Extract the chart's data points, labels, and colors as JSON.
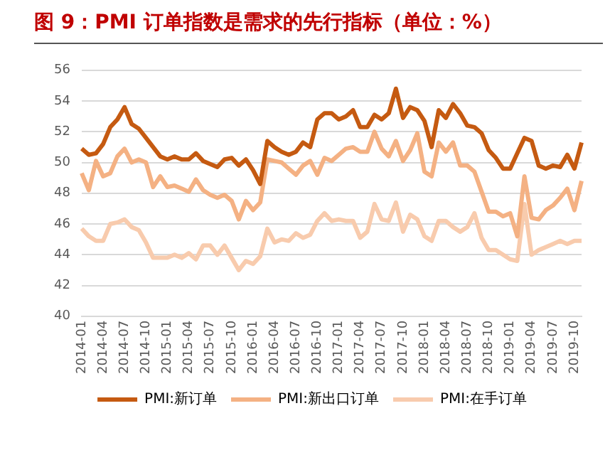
{
  "chart_data": {
    "type": "line",
    "title": "图 9：PMI 订单指数是需求的先行指标（单位：%）",
    "categories": [
      "2014-01",
      null,
      null,
      "2014-04",
      null,
      null,
      "2014-07",
      null,
      null,
      "2014-10",
      null,
      null,
      "2015-01",
      null,
      null,
      "2015-04",
      null,
      null,
      "2015-07",
      null,
      null,
      "2015-10",
      null,
      null,
      "2016-01",
      null,
      null,
      "2016-04",
      null,
      null,
      "2016-07",
      null,
      null,
      "2016-10",
      null,
      null,
      "2017-01",
      null,
      null,
      "2017-04",
      null,
      null,
      "2017-07",
      null,
      null,
      "2017-10",
      null,
      null,
      "2018-01",
      null,
      null,
      "2018-04",
      null,
      null,
      "2018-07",
      null,
      null,
      "2018-10",
      null,
      null,
      "2019-01",
      null,
      null,
      "2019-04",
      null,
      null,
      "2019-07",
      null,
      null,
      "2019-10",
      null
    ],
    "series": [
      {
        "name": "PMI:新订单",
        "color": "#c55a11",
        "values": [
          50.9,
          50.5,
          50.6,
          51.2,
          52.3,
          52.8,
          53.6,
          52.5,
          52.2,
          51.6,
          51.0,
          50.4,
          50.2,
          50.4,
          50.2,
          50.2,
          50.6,
          50.1,
          49.9,
          49.7,
          50.2,
          50.3,
          49.8,
          50.2,
          49.5,
          48.6,
          51.4,
          51.0,
          50.7,
          50.5,
          50.7,
          51.3,
          51.0,
          52.8,
          53.2,
          53.2,
          52.8,
          53.0,
          53.4,
          52.3,
          52.3,
          53.1,
          52.8,
          53.2,
          54.8,
          52.9,
          53.6,
          53.4,
          52.7,
          51.0,
          53.4,
          52.9,
          53.8,
          53.2,
          52.4,
          52.3,
          51.9,
          50.8,
          50.3,
          49.6,
          49.6,
          50.6,
          51.6,
          51.4,
          49.8,
          49.6,
          49.8,
          49.7,
          50.5,
          49.6,
          51.3
        ]
      },
      {
        "name": "PMI:新出口订单",
        "color": "#f4b183",
        "values": [
          49.3,
          48.2,
          50.1,
          49.1,
          49.3,
          50.4,
          50.9,
          50.0,
          50.2,
          50.0,
          48.4,
          49.1,
          48.4,
          48.5,
          48.3,
          48.1,
          48.9,
          48.2,
          47.9,
          47.7,
          47.9,
          47.5,
          46.3,
          47.5,
          46.9,
          47.4,
          50.2,
          50.1,
          50.0,
          49.6,
          49.2,
          49.8,
          50.1,
          49.2,
          50.3,
          50.1,
          50.5,
          50.9,
          51.0,
          50.7,
          50.7,
          52.0,
          50.9,
          50.4,
          51.4,
          50.1,
          50.8,
          51.9,
          49.4,
          49.1,
          51.3,
          50.7,
          51.3,
          49.8,
          49.8,
          49.4,
          48.1,
          46.8,
          46.8,
          46.5,
          46.7,
          45.2,
          49.1,
          46.4,
          46.3,
          46.9,
          47.2,
          47.7,
          48.3,
          46.9,
          48.8
        ]
      },
      {
        "name": "PMI:在手订单",
        "color": "#f8cbad",
        "values": [
          45.7,
          45.2,
          44.9,
          44.9,
          46.0,
          46.1,
          46.3,
          45.8,
          45.6,
          44.8,
          43.8,
          43.8,
          43.8,
          44.0,
          43.8,
          44.1,
          43.7,
          44.6,
          44.6,
          44.0,
          44.6,
          43.8,
          43.0,
          43.6,
          43.4,
          43.9,
          45.7,
          44.8,
          45.0,
          44.9,
          45.4,
          45.1,
          45.3,
          46.2,
          46.7,
          46.2,
          46.3,
          46.2,
          46.2,
          45.1,
          45.5,
          47.3,
          46.3,
          46.2,
          47.4,
          45.5,
          46.6,
          46.3,
          45.2,
          44.9,
          46.2,
          46.2,
          45.8,
          45.5,
          45.8,
          46.7,
          45.1,
          44.3,
          44.3,
          44.0,
          43.7,
          43.6,
          47.3,
          44.0,
          44.3,
          44.5,
          44.7,
          44.9,
          44.7,
          44.9,
          44.9
        ]
      }
    ],
    "ylim": [
      40,
      56
    ],
    "yticks": [
      40,
      42,
      44,
      46,
      48,
      50,
      52,
      54,
      56
    ],
    "grid": "y",
    "legend": "bottom",
    "marker": "none",
    "line_style": "solid"
  }
}
